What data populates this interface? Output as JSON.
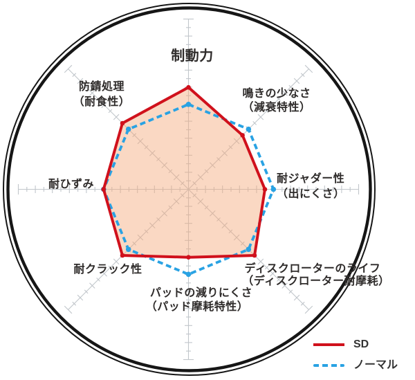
{
  "chart_data": {
    "type": "radar",
    "title": "",
    "categories": [
      "制動力",
      "鳴きの少なさ（減衰特性）",
      "耐ジャダー性（出にくさ）",
      "ディスクローターのライフ（ディスクローター耐摩耗）",
      "パッドの減りにくさ（パッド摩耗特性）",
      "耐クラック性",
      "耐ひずみ",
      "防錆処理（耐食性）"
    ],
    "axis_label_lines": [
      [
        "制動力"
      ],
      [
        "鳴きの少なさ",
        "（減衰特性）"
      ],
      [
        "耐ジャダー性",
        "（出にくさ）"
      ],
      [
        "ディスクローターのライフ",
        "（ディスクローター耐摩耗）"
      ],
      [
        "パッドの減りにくさ",
        "（パッド摩耗特性）"
      ],
      [
        "耐クラック性"
      ],
      [
        "耐ひずみ"
      ],
      [
        "防錆処理",
        "（耐食性）"
      ]
    ],
    "series": [
      {
        "name": "SD",
        "values": [
          6,
          4.5,
          4.5,
          5.5,
          4,
          5.5,
          5,
          5.5
        ],
        "color": "#d0111c",
        "line_style": "solid",
        "fill": "#f3a87a",
        "fill_opacity": 0.45
      },
      {
        "name": "ノーマル",
        "values": [
          5,
          5,
          5,
          5,
          5,
          5,
          5,
          5
        ],
        "color": "#29a2e3",
        "line_style": "dashed"
      }
    ],
    "scale": {
      "min": 0,
      "max": 10,
      "tick_step": 0.5,
      "major_tick_step": 1
    },
    "grid": "8 radial spokes with perpendicular tick marks, double black outer circle",
    "legend_position": "bottom-right"
  },
  "legend": {
    "items": [
      {
        "label": "SD",
        "style": "solid"
      },
      {
        "label": "ノーマル",
        "style": "dashed"
      }
    ]
  },
  "colors": {
    "sd_red": "#d0111c",
    "normal_blue": "#29a2e3",
    "fill_peach": "#f8d8c2",
    "axis_gray": "#c1c6cb",
    "ring_black": "#161616",
    "text": "#2e2b2a"
  }
}
